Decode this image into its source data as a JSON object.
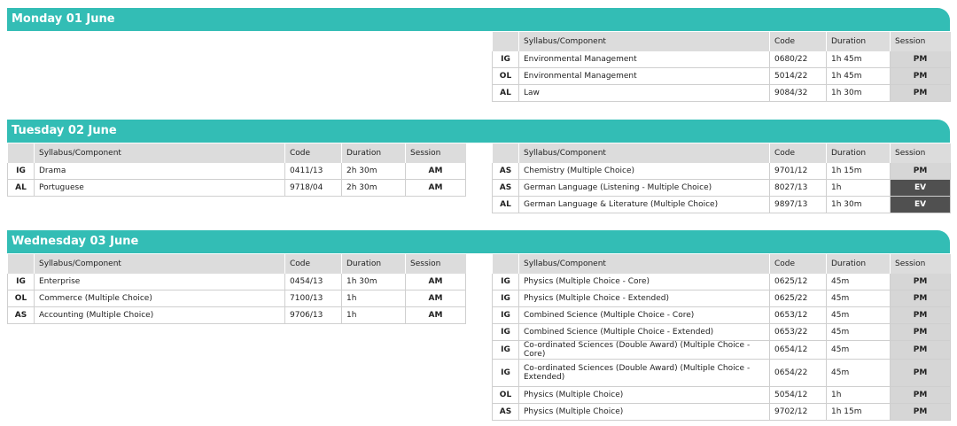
{
  "days": [
    {
      "title": "Monday 01 June",
      "right": {
        "headers": [
          "",
          "Syllabus/Component",
          "Code",
          "Duration",
          "Session"
        ],
        "rows": [
          {
            "level": "IG",
            "syllabus": "Environmental Management",
            "code": "0680/22",
            "duration": "1h 45m",
            "session": "PM"
          },
          {
            "level": "OL",
            "syllabus": "Environmental Management",
            "code": "5014/22",
            "duration": "1h 45m",
            "session": "PM"
          },
          {
            "level": "AL",
            "syllabus": "Law",
            "code": "9084/32",
            "duration": "1h 30m",
            "session": "PM"
          }
        ]
      }
    },
    {
      "title": "Tuesday 02 June",
      "left": {
        "headers": [
          "",
          "Syllabus/Component",
          "Code",
          "Duration",
          "Session"
        ],
        "rows": [
          {
            "level": "IG",
            "syllabus": "Drama",
            "code": "0411/13",
            "duration": "2h 30m",
            "session": "AM"
          },
          {
            "level": "AL",
            "syllabus": "Portuguese",
            "code": "9718/04",
            "duration": "2h 30m",
            "session": "AM"
          }
        ]
      },
      "right": {
        "headers": [
          "",
          "Syllabus/Component",
          "Code",
          "Duration",
          "Session"
        ],
        "rows": [
          {
            "level": "AS",
            "syllabus": "Chemistry (Multiple Choice)",
            "code": "9701/12",
            "duration": "1h 15m",
            "session": "PM"
          },
          {
            "level": "AS",
            "syllabus": "German Language (Listening - Multiple Choice)",
            "code": "8027/13",
            "duration": "1h",
            "session": "EV"
          },
          {
            "level": "AL",
            "syllabus": "German Language & Literature (Multiple Choice)",
            "code": "9897/13",
            "duration": "1h 30m",
            "session": "EV"
          }
        ]
      }
    },
    {
      "title": "Wednesday 03 June",
      "left": {
        "headers": [
          "",
          "Syllabus/Component",
          "Code",
          "Duration",
          "Session"
        ],
        "rows": [
          {
            "level": "IG",
            "syllabus": "Enterprise",
            "code": "0454/13",
            "duration": "1h 30m",
            "session": "AM"
          },
          {
            "level": "OL",
            "syllabus": "Commerce (Multiple Choice)",
            "code": "7100/13",
            "duration": "1h",
            "session": "AM"
          },
          {
            "level": "AS",
            "syllabus": "Accounting (Multiple Choice)",
            "code": "9706/13",
            "duration": "1h",
            "session": "AM"
          }
        ]
      },
      "right": {
        "headers": [
          "",
          "Syllabus/Component",
          "Code",
          "Duration",
          "Session"
        ],
        "rows": [
          {
            "level": "IG",
            "syllabus": "Physics (Multiple Choice - Core)",
            "code": "0625/12",
            "duration": "45m",
            "session": "PM"
          },
          {
            "level": "IG",
            "syllabus": "Physics (Multiple Choice - Extended)",
            "code": "0625/22",
            "duration": "45m",
            "session": "PM"
          },
          {
            "level": "IG",
            "syllabus": "Combined Science (Multiple Choice - Core)",
            "code": "0653/12",
            "duration": "45m",
            "session": "PM"
          },
          {
            "level": "IG",
            "syllabus": "Combined Science (Multiple Choice - Extended)",
            "code": "0653/22",
            "duration": "45m",
            "session": "PM"
          },
          {
            "level": "IG",
            "syllabus": "Co-ordinated Sciences (Double Award) (Multiple Choice - Core)",
            "code": "0654/12",
            "duration": "45m",
            "session": "PM"
          },
          {
            "level": "IG",
            "syllabus": "Co-ordinated Sciences (Double Award) (Multiple Choice - Extended)",
            "code": "0654/22",
            "duration": "45m",
            "session": "PM"
          },
          {
            "level": "OL",
            "syllabus": "Physics (Multiple Choice)",
            "code": "5054/12",
            "duration": "1h",
            "session": "PM"
          },
          {
            "level": "AS",
            "syllabus": "Physics (Multiple Choice)",
            "code": "9702/12",
            "duration": "1h 15m",
            "session": "PM"
          }
        ]
      }
    }
  ],
  "colors": {
    "header": "#33bdb5",
    "pm": "#d6d6d6",
    "ev": "#505050"
  }
}
